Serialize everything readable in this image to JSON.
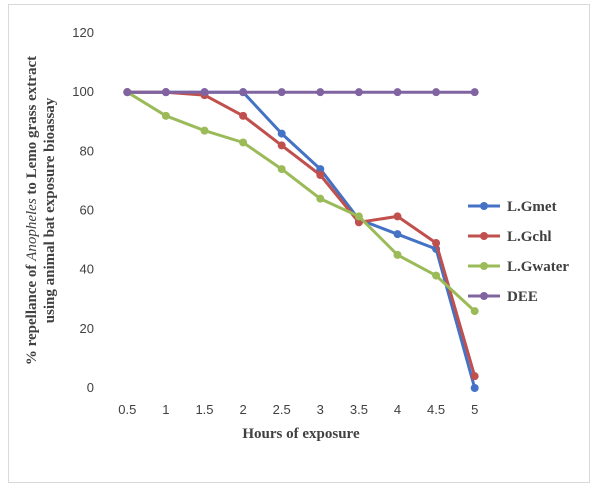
{
  "chart_data": {
    "type": "line",
    "xlabel": "Hours of exposure",
    "ylabel_line1_prefix": "% repellance of ",
    "ylabel_line1_italic": "Anopheles",
    "ylabel_line1_suffix": " to Lemo grass extract",
    "ylabel_line2": "using animal bat exposure bioassay",
    "categories": [
      "0.5",
      "1",
      "1.5",
      "2",
      "2.5",
      "3",
      "3.5",
      "4",
      "4.5",
      "5"
    ],
    "ylim": [
      0,
      120
    ],
    "yticks": [
      0,
      20,
      40,
      60,
      80,
      100,
      120
    ],
    "grid": false,
    "legend_position": "right",
    "series": [
      {
        "name": "L.Gmet",
        "color": "#4472c4",
        "values": [
          100,
          100,
          100,
          100,
          86,
          74,
          57,
          52,
          47,
          0
        ]
      },
      {
        "name": "L.Gchl",
        "color": "#c0504d",
        "values": [
          100,
          100,
          99,
          92,
          82,
          72,
          56,
          58,
          49,
          4
        ]
      },
      {
        "name": "L.Gwater",
        "color": "#9bbb59",
        "values": [
          100,
          92,
          87,
          83,
          74,
          64,
          58,
          45,
          38,
          26
        ]
      },
      {
        "name": "DEE",
        "color": "#8064a2",
        "values": [
          100,
          100,
          100,
          100,
          100,
          100,
          100,
          100,
          100,
          100
        ]
      }
    ]
  }
}
